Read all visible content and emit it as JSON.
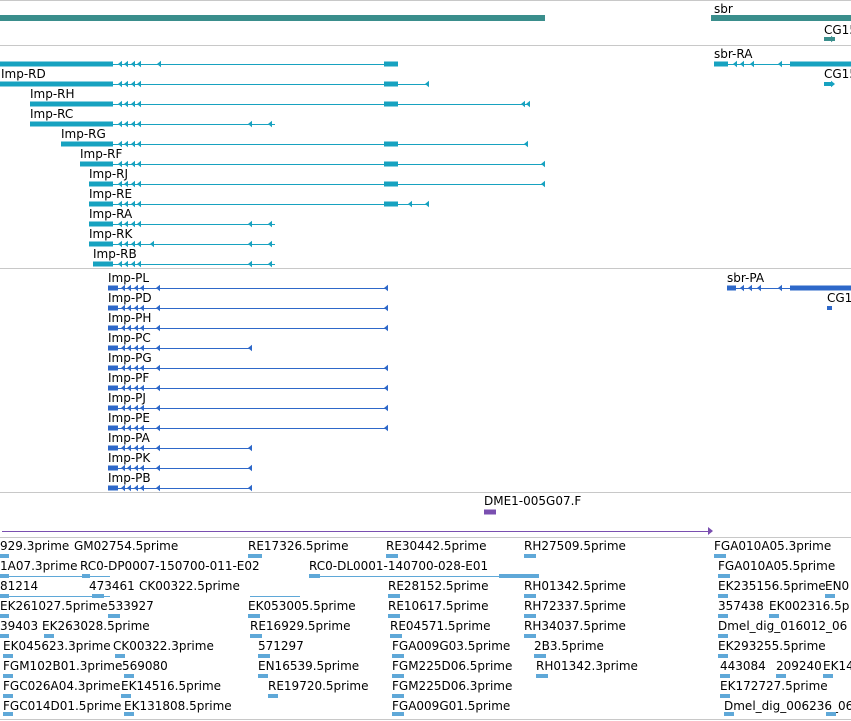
{
  "colors": {
    "gene": "#3a8e8c",
    "transcript": "#17a2c0",
    "protein": "#2e68c9",
    "est_primary": "#7a4fb0",
    "est": "#5fa8d8",
    "divider": "#c8c8c8"
  },
  "tracks": {
    "gene": {
      "items": [
        "sbr",
        "CG15"
      ]
    },
    "transcripts": {
      "items": [
        "sbr-RA",
        "CG15",
        "Imp-RD",
        "Imp-RH",
        "Imp-RC",
        "Imp-RG",
        "Imp-RF",
        "Imp-RJ",
        "Imp-RE",
        "Imp-RA",
        "Imp-RK",
        "Imp-RB"
      ]
    },
    "proteins": {
      "items": [
        "Imp-PL",
        "sbr-PA",
        "CG1",
        "Imp-PD",
        "Imp-PH",
        "Imp-PC",
        "Imp-PG",
        "Imp-PF",
        "Imp-PJ",
        "Imp-PE",
        "Imp-PA",
        "Imp-PK",
        "Imp-PB"
      ]
    },
    "est_primary": {
      "items": [
        "DME1-005G07.F"
      ]
    },
    "est_rows": [
      [
        "929.3prime",
        "GM02754.5prime",
        "RE17326.5prime",
        "RE30442.5prime",
        "RH27509.5prime",
        "FGA010A05.3prime"
      ],
      [
        "1A07.3prime",
        "RC0-DP0007-150700-011-E02",
        "RC0-DL0001-140700-028-E01",
        "FGA010A05.5prime"
      ],
      [
        "81214",
        "473461",
        "CK00322.5prime",
        "RE28152.5prime",
        "RH01342.5prime",
        "EK235156.5prime",
        "EN0"
      ],
      [
        "EK261027.5prime",
        "533927",
        "EK053005.5prime",
        "RE10617.5prime",
        "RH72337.5prime",
        "357438",
        "EK002316.5p"
      ],
      [
        "39403",
        "EK263028.5prime",
        "RE16929.5prime",
        "RE04571.5prime",
        "RH34037.5prime",
        "Dmel_dig_016012_06"
      ],
      [
        "EK045623.3prime",
        "CK00322.3prime",
        "571297",
        "FGA009G03.5prime",
        "2B3.5prime",
        "EK293255.5prime"
      ],
      [
        "FGM102B01.3prime",
        "569080",
        "EN16539.5prime",
        "FGM225D06.5prime",
        "RH01342.3prime",
        "443084",
        "209240",
        "EK14"
      ],
      [
        "FGC026A04.3prime",
        "EK14516.5prime",
        "RE19720.5prime",
        "FGM225D06.3prime",
        "EK172727.5prime"
      ],
      [
        "FGC014D01.5prime",
        "EK131808.5prime",
        "FGA009G01.5prime",
        "Dmel_dig_006236_06"
      ]
    ]
  }
}
